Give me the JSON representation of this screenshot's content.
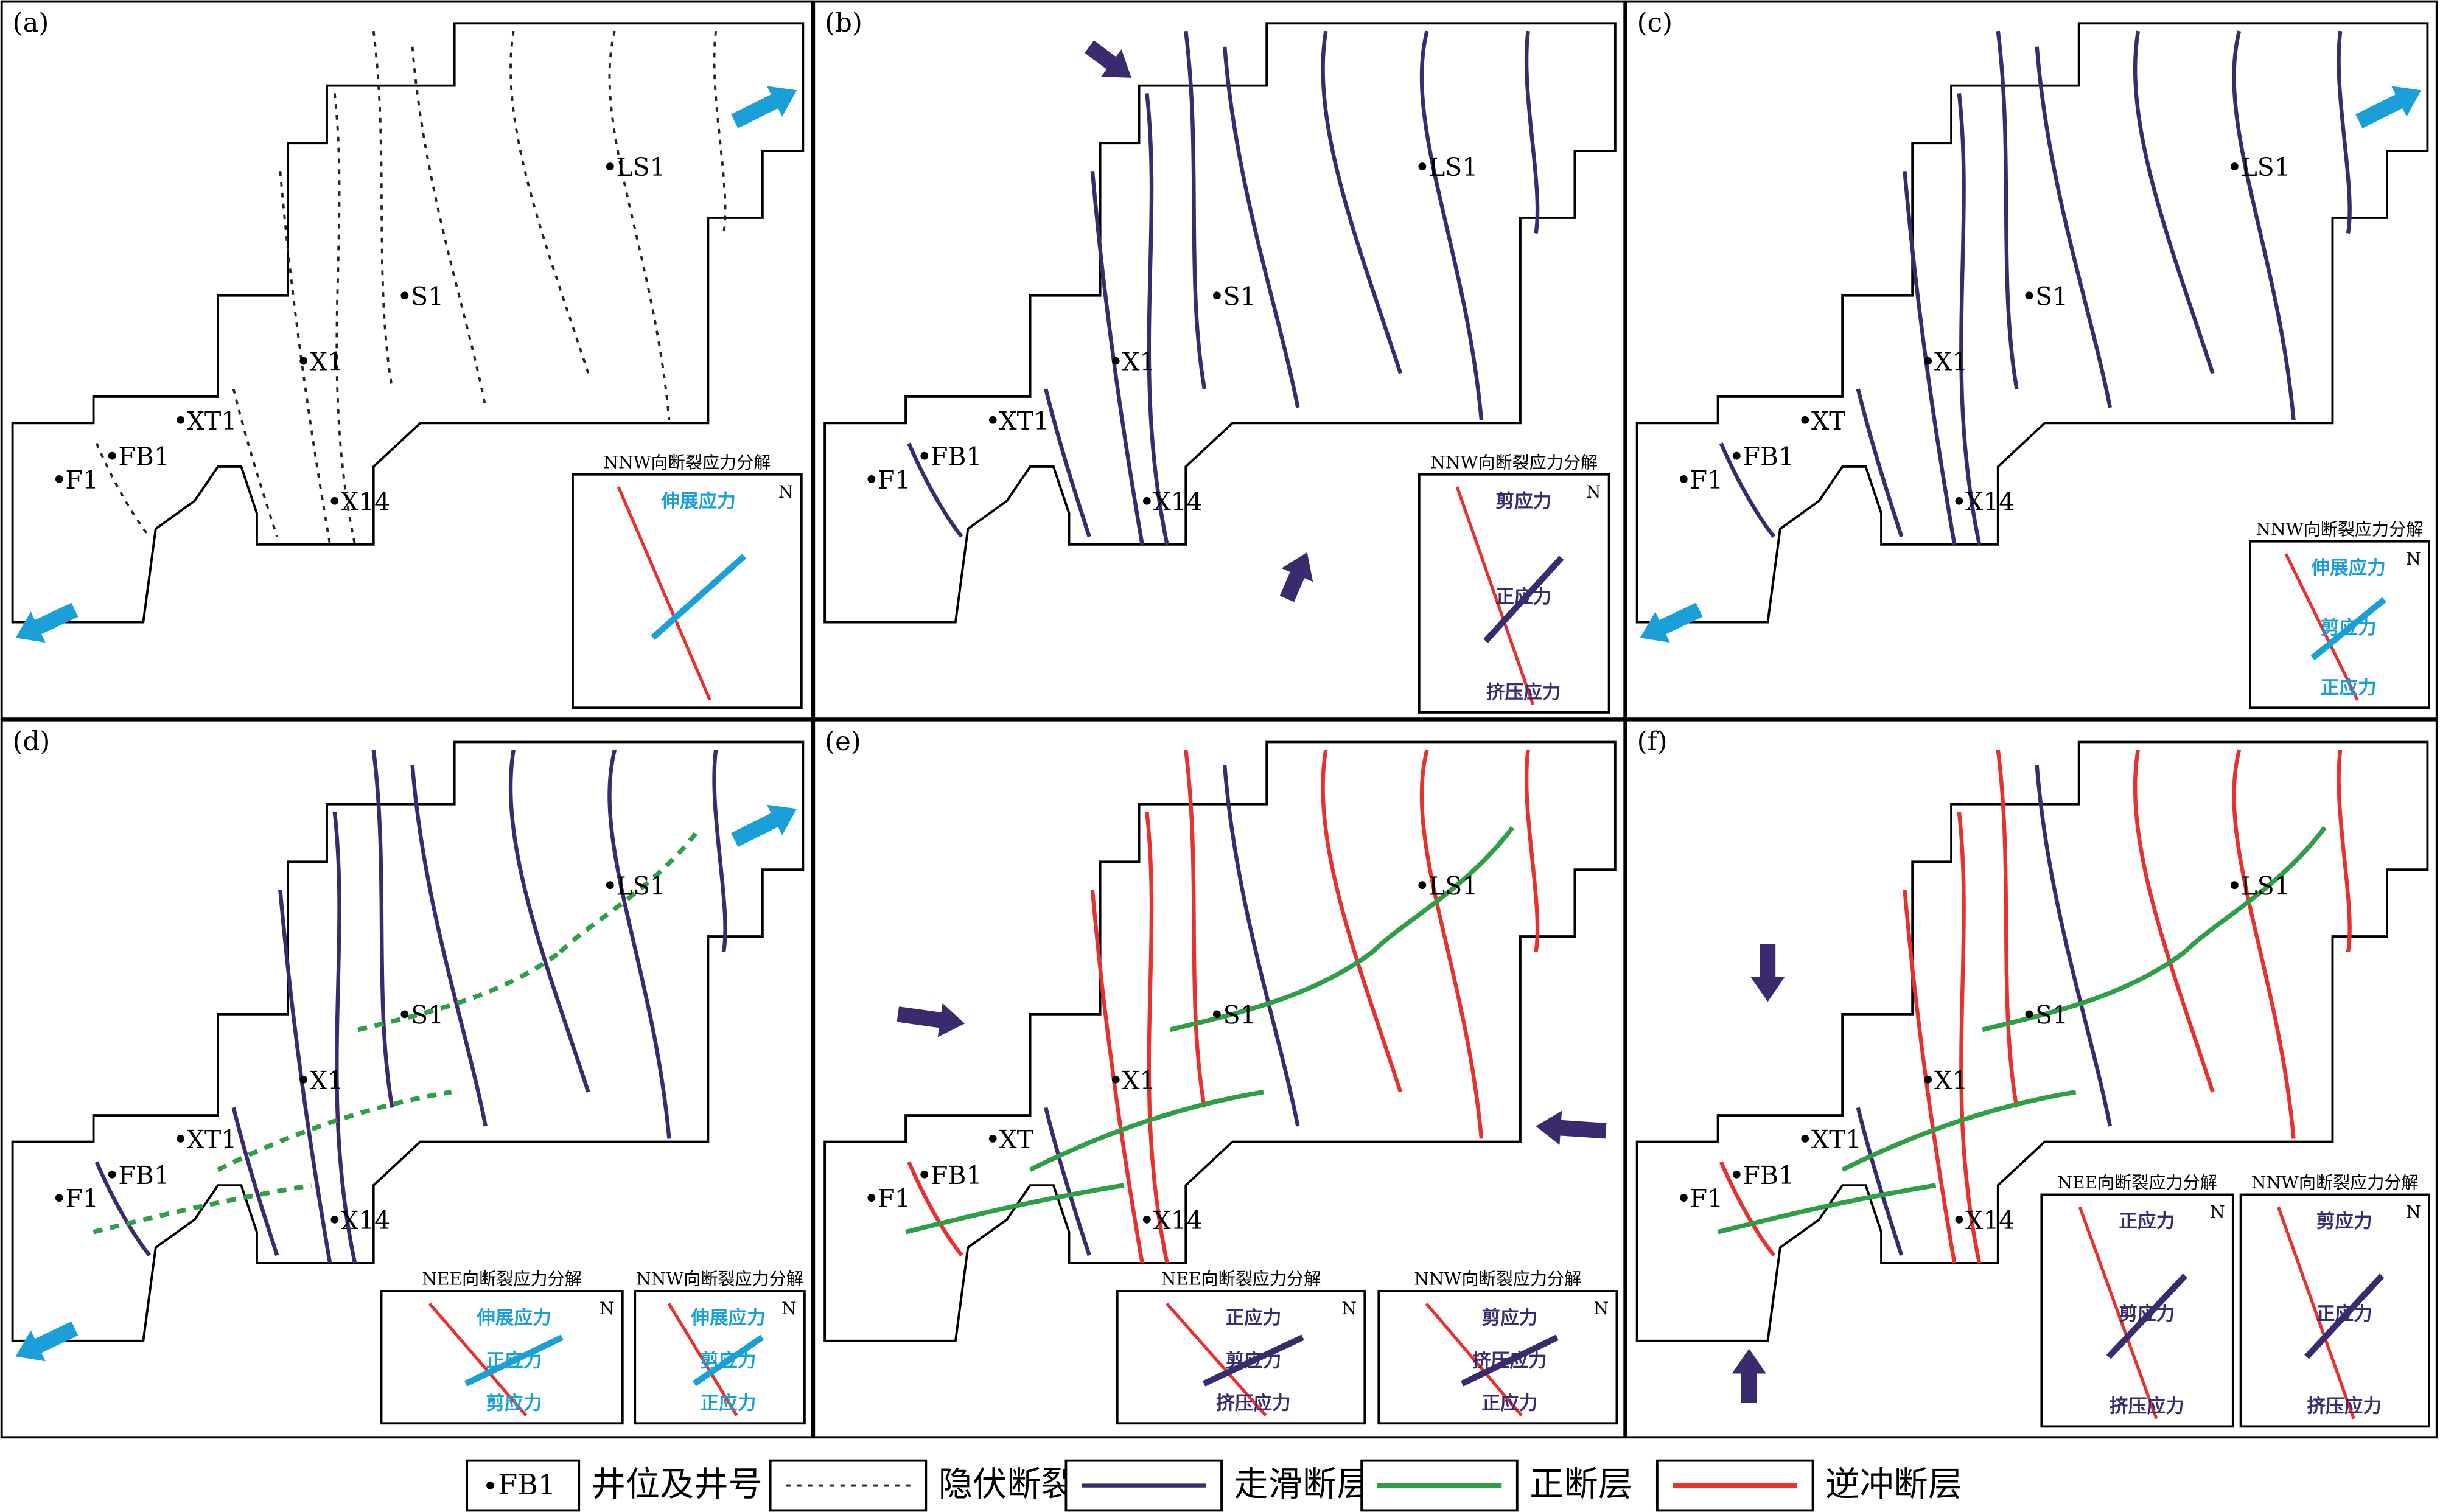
{
  "panels": [
    {
      "label": "(a)",
      "wells": [
        "F1",
        "FB1",
        "XT1",
        "X1",
        "X14",
        "S1",
        "LS1"
      ],
      "insets": [
        {
          "title": "NNW向断裂应力分解",
          "labels": [
            "伸展应力"
          ],
          "north": "N"
        }
      ]
    },
    {
      "label": "(b)",
      "wells": [
        "F1",
        "FB1",
        "XT1",
        "X1",
        "X14",
        "S1",
        "LS1"
      ],
      "insets": [
        {
          "title": "NNW向断裂应力分解",
          "labels": [
            "剪应力",
            "正应力",
            "挤压应力"
          ],
          "north": "N"
        }
      ]
    },
    {
      "label": "(c)",
      "wells": [
        "F1",
        "FB1",
        "XT",
        "X1",
        "X14",
        "S1",
        "LS1"
      ],
      "insets": [
        {
          "title": "NNW向断裂应力分解",
          "labels": [
            "伸展应力",
            "剪应力",
            "正应力"
          ],
          "north": "N"
        }
      ]
    },
    {
      "label": "(d)",
      "wells": [
        "F1",
        "FB1",
        "XT1",
        "X1",
        "X14",
        "S1",
        "LS1"
      ],
      "insets": [
        {
          "title": "NEE向断裂应力分解",
          "labels": [
            "伸展应力",
            "正应力",
            "剪应力"
          ],
          "north": "N"
        },
        {
          "title": "NNW向断裂应力分解",
          "labels": [
            "伸展应力",
            "剪应力",
            "正应力"
          ],
          "north": "N"
        }
      ]
    },
    {
      "label": "(e)",
      "wells": [
        "F1",
        "FB1",
        "XT",
        "X1",
        "X14",
        "S1",
        "LS1"
      ],
      "insets": [
        {
          "title": "NEE向断裂应力分解",
          "labels": [
            "正应力",
            "剪应力",
            "挤压应力"
          ],
          "north": "N"
        },
        {
          "title": "NNW向断裂应力分解",
          "labels": [
            "剪应力",
            "挤压应力",
            "正应力"
          ],
          "north": "N"
        }
      ]
    },
    {
      "label": "(f)",
      "wells": [
        "F1",
        "FB1",
        "XT1",
        "X1",
        "X14",
        "S1",
        "LS1"
      ],
      "insets": [
        {
          "title": "NEE向断裂应力分解",
          "labels": [
            "正应力",
            "剪应力",
            "挤压应力"
          ],
          "north": "N"
        },
        {
          "title": "NNW向断裂应力分解",
          "labels": [
            "剪应力",
            "正应力",
            "挤压应力"
          ],
          "north": "N"
        }
      ]
    }
  ],
  "legend": {
    "well_example": "FB1",
    "items": [
      "井位及井号",
      "隐伏断裂",
      "走滑断层",
      "正断层",
      "逆冲断层"
    ]
  }
}
